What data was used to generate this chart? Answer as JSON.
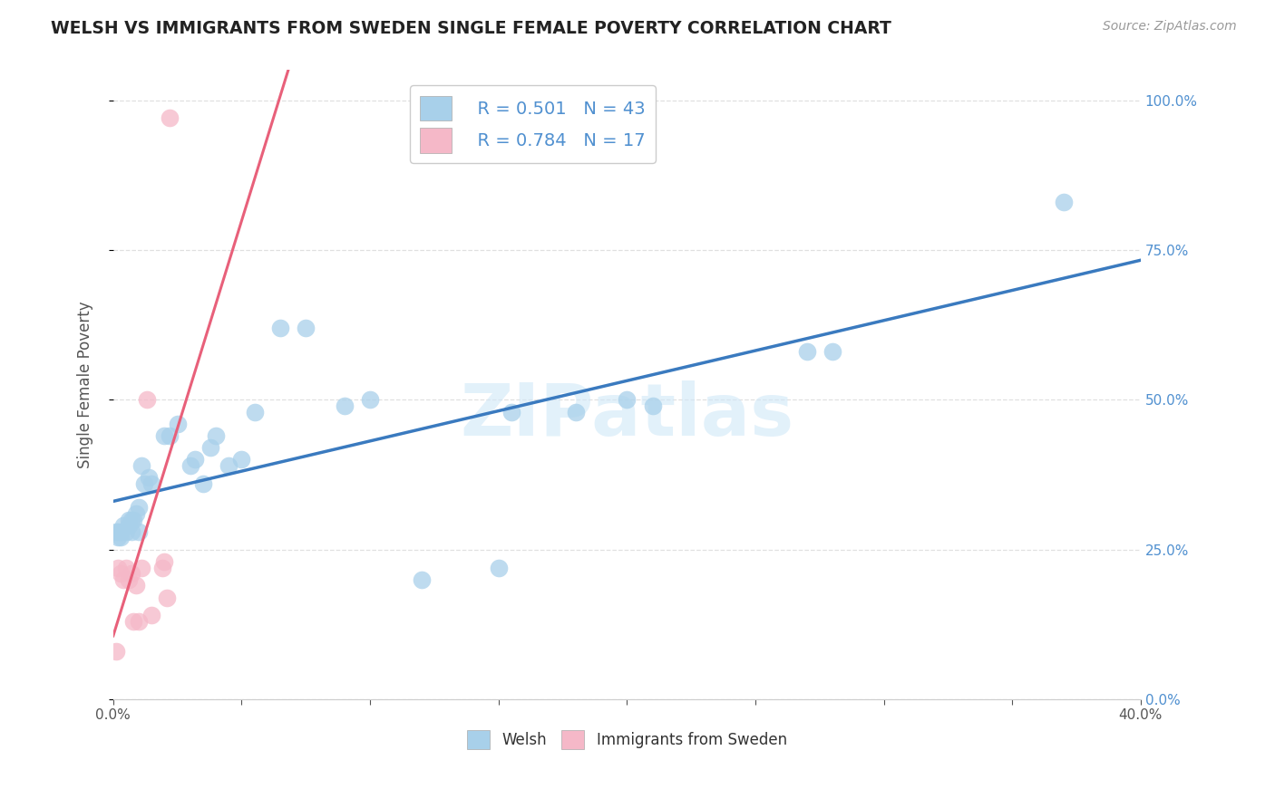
{
  "title": "WELSH VS IMMIGRANTS FROM SWEDEN SINGLE FEMALE POVERTY CORRELATION CHART",
  "source": "Source: ZipAtlas.com",
  "xlabel_welsh": "Welsh",
  "xlabel_sweden": "Immigrants from Sweden",
  "ylabel": "Single Female Poverty",
  "watermark": "ZIPatlas",
  "legend_r1": "R = 0.501",
  "legend_n1": "N = 43",
  "legend_r2": "R = 0.784",
  "legend_n2": "N = 17",
  "xlim": [
    0.0,
    0.4
  ],
  "ylim": [
    -0.02,
    1.05
  ],
  "ylim_display": [
    0.0,
    1.05
  ],
  "xtick_show": [
    0.0,
    0.4
  ],
  "yticks": [
    0.0,
    0.25,
    0.5,
    0.75,
    1.0
  ],
  "blue_color": "#7ec8e3",
  "pink_color": "#ffb3c6",
  "blue_line_color": "#3a7abf",
  "pink_line_color": "#e8607a",
  "blue_scatter_color": "#a8d0ea",
  "pink_scatter_color": "#f5b8c8",
  "welsh_x": [
    0.001,
    0.002,
    0.002,
    0.003,
    0.003,
    0.004,
    0.005,
    0.006,
    0.006,
    0.007,
    0.007,
    0.008,
    0.009,
    0.01,
    0.01,
    0.011,
    0.012,
    0.014,
    0.015,
    0.02,
    0.022,
    0.025,
    0.03,
    0.032,
    0.035,
    0.038,
    0.04,
    0.045,
    0.05,
    0.055,
    0.065,
    0.075,
    0.09,
    0.1,
    0.12,
    0.15,
    0.155,
    0.18,
    0.2,
    0.21,
    0.27,
    0.28,
    0.37
  ],
  "welsh_y": [
    0.28,
    0.27,
    0.28,
    0.27,
    0.28,
    0.29,
    0.28,
    0.3,
    0.29,
    0.3,
    0.28,
    0.3,
    0.31,
    0.28,
    0.32,
    0.39,
    0.36,
    0.37,
    0.36,
    0.44,
    0.44,
    0.46,
    0.39,
    0.4,
    0.36,
    0.42,
    0.44,
    0.39,
    0.4,
    0.48,
    0.62,
    0.62,
    0.49,
    0.5,
    0.2,
    0.22,
    0.48,
    0.48,
    0.5,
    0.49,
    0.58,
    0.58,
    0.83
  ],
  "sweden_x": [
    0.001,
    0.002,
    0.003,
    0.004,
    0.005,
    0.006,
    0.007,
    0.008,
    0.009,
    0.01,
    0.011,
    0.013,
    0.015,
    0.019,
    0.02,
    0.021,
    0.022
  ],
  "sweden_y": [
    0.08,
    0.22,
    0.21,
    0.2,
    0.22,
    0.2,
    0.21,
    0.13,
    0.19,
    0.13,
    0.22,
    0.5,
    0.14,
    0.22,
    0.23,
    0.17,
    0.97
  ],
  "background_color": "#ffffff",
  "grid_color": "#e0e0e0",
  "right_tick_color": "#5090d0",
  "title_color": "#222222",
  "source_color": "#999999",
  "ylabel_color": "#555555",
  "watermark_color": "#d0e8f8",
  "watermark_alpha": 0.6
}
